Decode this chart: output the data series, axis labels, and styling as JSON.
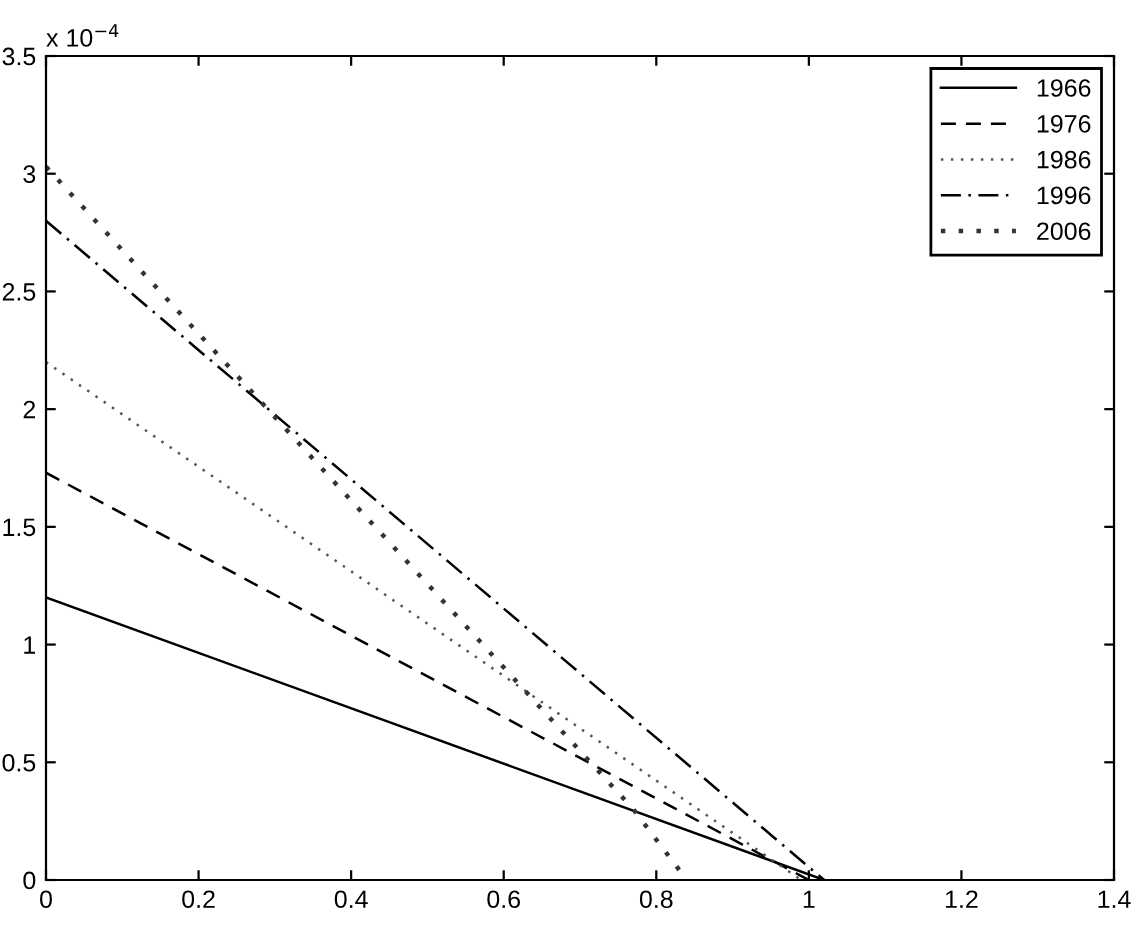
{
  "chart_data": {
    "type": "line",
    "series": [
      {
        "name": "1966",
        "color": "#000000",
        "line_style": "solid",
        "x": [
          0,
          1.02
        ],
        "values": [
          1.2,
          0
        ]
      },
      {
        "name": "1976",
        "color": "#000000",
        "line_style": "dashed",
        "x": [
          0,
          1.0
        ],
        "values": [
          1.73,
          0
        ]
      },
      {
        "name": "1986",
        "color": "#555555",
        "line_style": "dotted",
        "x": [
          0,
          0.99
        ],
        "values": [
          2.2,
          0
        ]
      },
      {
        "name": "1996",
        "color": "#000000",
        "line_style": "dashdot",
        "x": [
          0,
          1.02
        ],
        "values": [
          2.8,
          0
        ]
      },
      {
        "name": "2006",
        "color": "#333333",
        "line_style": "dotted",
        "x": [
          0,
          0.77,
          0.84
        ],
        "values": [
          3.03,
          0.3,
          0
        ]
      }
    ],
    "xlim": [
      0,
      1.4
    ],
    "xticks": [
      0,
      0.2,
      0.4,
      0.6,
      0.8,
      1,
      1.2,
      1.4
    ],
    "ylim": [
      0,
      3.5
    ],
    "yticks": [
      0,
      0.5,
      1,
      1.5,
      2,
      2.5,
      3,
      3.5
    ],
    "annotations": [
      "x 10$^{−4}$"
    ],
    "legend": "top right",
    "grid": false
  }
}
